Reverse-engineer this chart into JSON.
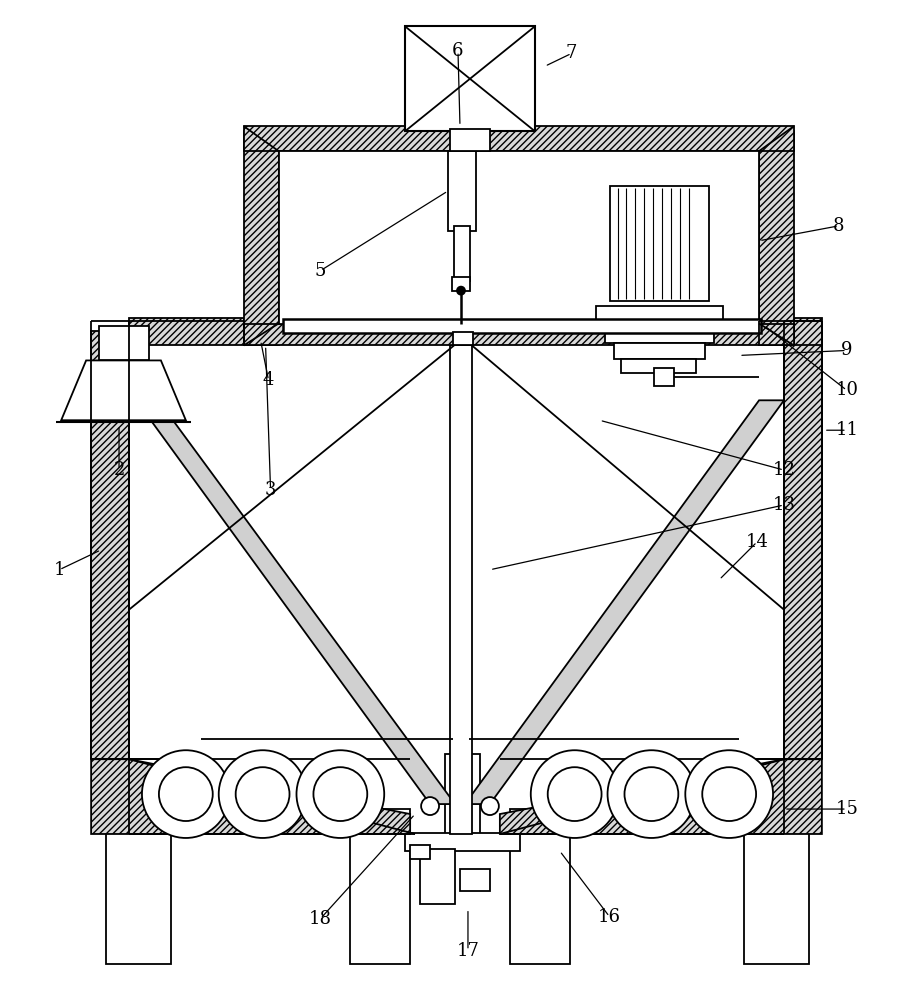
{
  "bg_color": "#ffffff",
  "lc": "#000000",
  "figsize": [
    9.13,
    10.0
  ],
  "dpi": 100,
  "lw": 1.3,
  "hatch_fc": "#d8d8d8",
  "label_fs": 13
}
